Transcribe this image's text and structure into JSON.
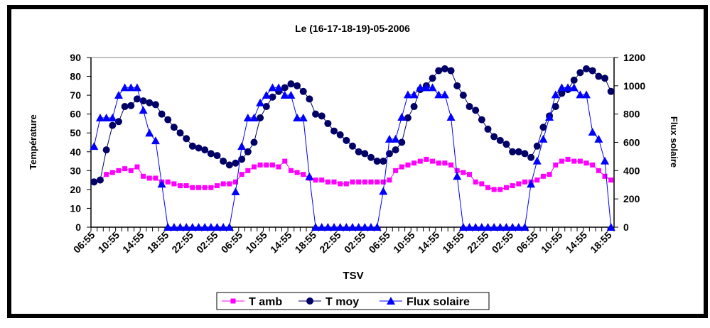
{
  "chart_data": {
    "type": "line",
    "title": "Le (16-17-18-19)-05-2006",
    "xlabel": "TSV",
    "ylabel": "Température",
    "y2label": "Flux solaire",
    "ylim": [
      0,
      90
    ],
    "y2lim": [
      0,
      1200
    ],
    "yticks": [
      0,
      10,
      20,
      30,
      40,
      50,
      60,
      70,
      80,
      90
    ],
    "y2ticks": [
      0,
      200,
      400,
      600,
      800,
      1000,
      1200
    ],
    "x_tick_step": 4,
    "x_tick_labels": [
      "06:55",
      "10:55",
      "14:55",
      "18:55",
      "22:55",
      "02:55",
      "06:55",
      "10:55",
      "14:55",
      "18:55",
      "22:55",
      "02:55",
      "06:55",
      "10:55",
      "14:55",
      "18:55",
      "22:55",
      "02:55",
      "06:55",
      "10:55",
      "14:55",
      "18:55"
    ],
    "grid": "top-line-only",
    "legend_position": "bottom",
    "series": [
      {
        "name": "T amb",
        "axis": "left",
        "color": "#ff00ff",
        "marker": "square",
        "values": [
          24,
          25,
          28,
          29,
          30,
          31,
          30,
          32,
          27,
          26,
          26,
          24,
          24,
          23,
          22,
          22,
          21,
          21,
          21,
          21,
          22,
          23,
          23,
          24,
          28,
          30,
          32,
          33,
          33,
          33,
          32,
          35,
          30,
          29,
          28,
          26,
          25,
          25,
          24,
          24,
          23,
          23,
          24,
          24,
          24,
          24,
          24,
          24,
          25,
          30,
          32,
          33,
          34,
          35,
          36,
          35,
          34,
          34,
          33,
          30,
          29,
          28,
          24,
          23,
          21,
          20,
          20,
          21,
          22,
          23,
          24,
          24,
          25,
          27,
          28,
          33,
          35,
          36,
          35,
          35,
          34,
          33,
          30,
          27,
          25
        ]
      },
      {
        "name": "T moy",
        "axis": "left",
        "color": "#000066",
        "marker": "circle",
        "values": [
          24,
          25,
          41,
          54,
          56,
          64,
          64.5,
          68,
          67,
          66,
          65,
          60,
          57,
          53,
          50,
          47,
          43,
          42,
          41,
          39,
          38,
          35,
          33,
          34,
          36,
          40,
          45,
          58,
          64,
          69,
          72,
          74,
          76,
          75,
          72,
          68,
          60,
          59,
          55,
          51,
          49,
          46,
          43,
          40,
          39,
          37,
          35,
          35,
          39,
          41,
          45,
          58,
          64,
          73,
          75,
          79,
          83,
          84,
          83,
          75,
          70,
          64,
          62,
          57,
          52,
          48,
          46,
          44,
          40,
          40,
          39,
          37,
          43,
          53,
          59,
          64,
          71,
          73,
          78,
          82,
          84,
          83,
          80,
          79,
          72
        ]
      },
      {
        "name": "Flux solaire",
        "axis": "right",
        "color": "#0000ff",
        "marker": "triangle",
        "values": [
          572,
          773,
          773,
          773,
          934,
          987,
          987,
          987,
          827,
          666,
          612,
          305,
          0,
          0,
          0,
          0,
          0,
          0,
          0,
          0,
          0,
          0,
          0,
          251,
          572,
          773,
          773,
          880,
          934,
          987,
          987,
          934,
          934,
          773,
          773,
          358,
          0,
          0,
          0,
          0,
          0,
          0,
          0,
          0,
          0,
          0,
          0,
          254,
          623,
          623,
          778,
          937,
          937,
          987,
          987,
          987,
          937,
          937,
          778,
          360,
          0,
          0,
          0,
          0,
          0,
          0,
          0,
          0,
          0,
          0,
          0,
          305,
          469,
          623,
          778,
          937,
          987,
          987,
          987,
          937,
          937,
          673,
          623,
          469,
          0
        ]
      }
    ]
  }
}
